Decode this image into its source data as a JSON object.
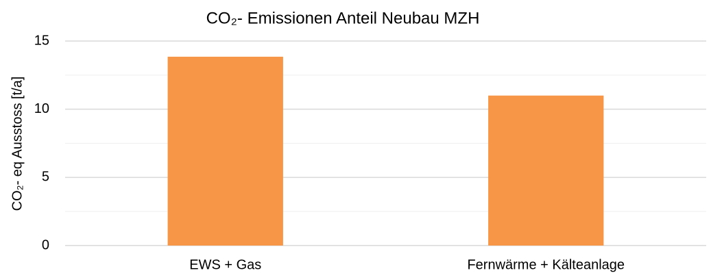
{
  "chart_data": {
    "type": "bar",
    "title": "CO₂- Emissionen Anteil Neubau MZH",
    "y_axis_label": "CO₂- eq Ausstoss [t/a]",
    "categories": [
      "EWS + Gas",
      "Fernwärme + Kälteanlage"
    ],
    "values": [
      13.85,
      11.0
    ],
    "color": "#f79646",
    "ylim": [
      0,
      15
    ],
    "yticks": [
      0,
      5,
      10,
      15
    ],
    "minor_yticks": [
      2.5,
      7.5,
      12.5
    ],
    "grid": true
  }
}
